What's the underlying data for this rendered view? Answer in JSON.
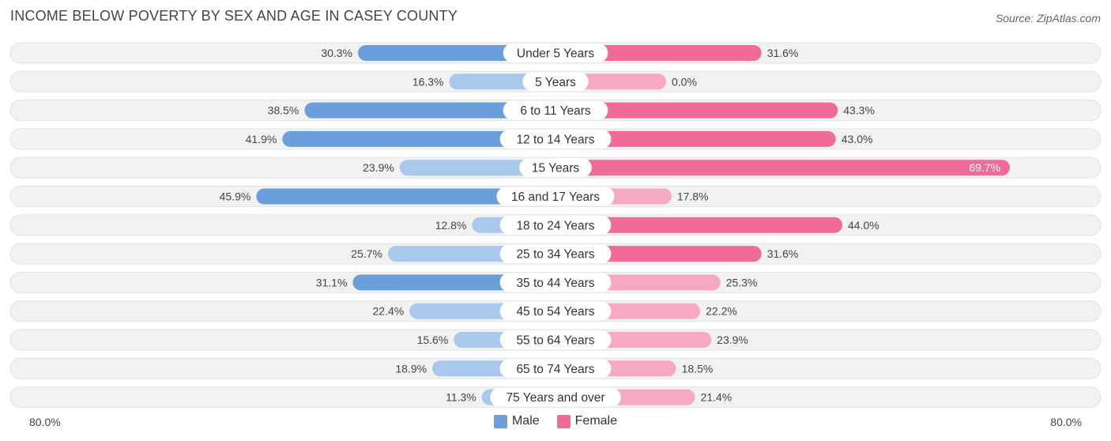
{
  "title": "INCOME BELOW POVERTY BY SEX AND AGE IN CASEY COUNTY",
  "source": "Source: ZipAtlas.com",
  "axis": {
    "left_label": "80.0%",
    "right_label": "80.0%"
  },
  "legend": {
    "male": "Male",
    "female": "Female"
  },
  "colors": {
    "male_dark": "#6a9fdb",
    "male_light": "#a8c8ec",
    "female_dark": "#f06b96",
    "female_light": "#f7a8c2",
    "row_bg": "#f2f2f2"
  },
  "chart_data": {
    "type": "bar",
    "orientation": "horizontal-diverging",
    "title": "INCOME BELOW POVERTY BY SEX AND AGE IN CASEY COUNTY",
    "xlim": [
      -80,
      80
    ],
    "categories": [
      "Under 5 Years",
      "5 Years",
      "6 to 11 Years",
      "12 to 14 Years",
      "15 Years",
      "16 and 17 Years",
      "18 to 24 Years",
      "25 to 34 Years",
      "35 to 44 Years",
      "45 to 54 Years",
      "55 to 64 Years",
      "65 to 74 Years",
      "75 Years and over"
    ],
    "series": [
      {
        "name": "Male",
        "values": [
          30.3,
          16.3,
          38.5,
          41.9,
          23.9,
          45.9,
          12.8,
          25.7,
          31.1,
          22.4,
          15.6,
          18.9,
          11.3
        ],
        "labels": [
          "30.3%",
          "16.3%",
          "38.5%",
          "41.9%",
          "23.9%",
          "45.9%",
          "12.8%",
          "25.7%",
          "31.1%",
          "22.4%",
          "15.6%",
          "18.9%",
          "11.3%"
        ]
      },
      {
        "name": "Female",
        "values": [
          31.6,
          0.0,
          43.3,
          43.0,
          69.7,
          17.8,
          44.0,
          31.6,
          25.3,
          22.2,
          23.9,
          18.5,
          21.4
        ],
        "labels": [
          "31.6%",
          "0.0%",
          "43.3%",
          "43.0%",
          "69.7%",
          "17.8%",
          "44.0%",
          "31.6%",
          "25.3%",
          "22.2%",
          "23.9%",
          "18.5%",
          "21.4%"
        ]
      }
    ]
  }
}
